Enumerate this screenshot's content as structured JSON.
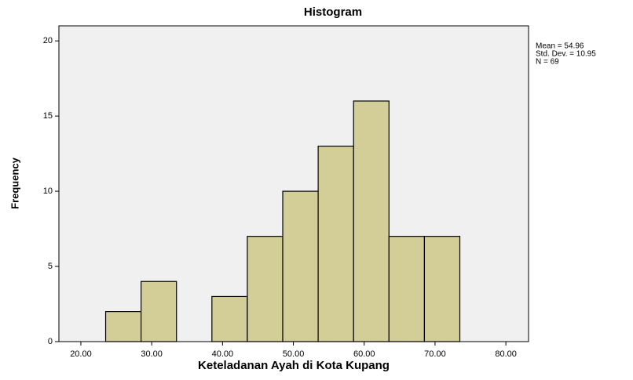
{
  "chart_data": {
    "type": "histogram",
    "title": "Histogram",
    "x_label": "Keteladanan Ayah di Kota Kupang",
    "y_label": "Frequency",
    "annotations": [
      "Mean = 54.96",
      "Std. Dev. = 10.95",
      "N = 69"
    ],
    "bins": [
      23.5,
      28.5,
      33.5,
      38.5,
      43.5,
      48.5,
      53.5,
      58.5,
      63.5,
      68.5,
      73.5
    ],
    "values": [
      2,
      4,
      0,
      3,
      7,
      10,
      13,
      16,
      7,
      7
    ],
    "color": "#d3ce97",
    "xlim": [
      16.9,
      83.2
    ],
    "xticks": [
      {
        "value": 20,
        "label": "20.00"
      },
      {
        "value": 30,
        "label": "30.00"
      },
      {
        "value": 40,
        "label": "40.00"
      },
      {
        "value": 50,
        "label": "50.00"
      },
      {
        "value": 60,
        "label": "60.00"
      },
      {
        "value": 70,
        "label": "70.00"
      },
      {
        "value": 80,
        "label": "80.00"
      }
    ],
    "ylim": [
      0,
      21
    ],
    "yticks": [
      0,
      5,
      10,
      15,
      20
    ]
  }
}
